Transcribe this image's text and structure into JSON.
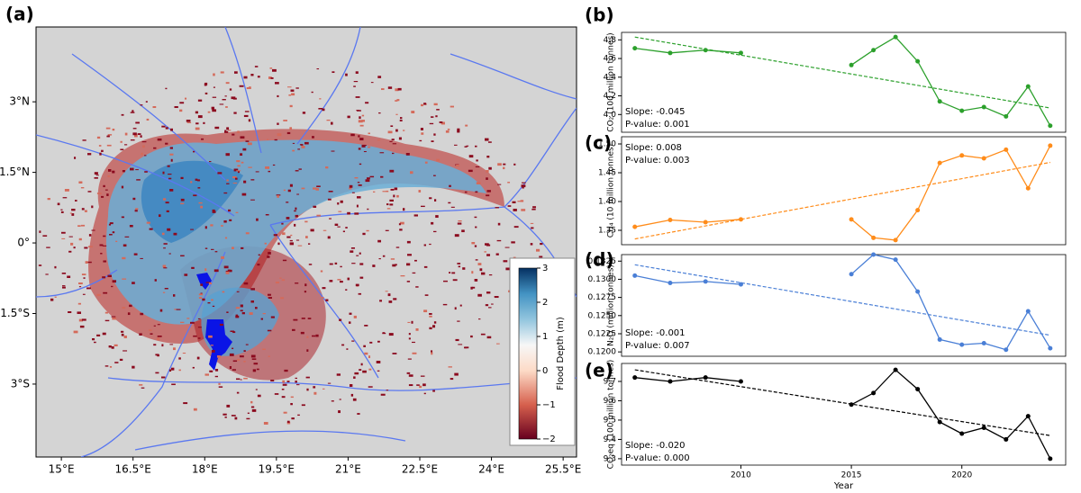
{
  "chart_data": [
    {
      "type": "map",
      "panel_label": "(a)",
      "xlim": [
        14.47,
        25.78
      ],
      "xticks": [
        {
          "value": 15,
          "label": "15°E"
        },
        {
          "value": 16.5,
          "label": "16.5°E"
        },
        {
          "value": 18,
          "label": "18°E"
        },
        {
          "value": 19.5,
          "label": "19.5°E"
        },
        {
          "value": 21,
          "label": "21°E"
        },
        {
          "value": 22.5,
          "label": "22.5°E"
        },
        {
          "value": 24,
          "label": "24°E"
        },
        {
          "value": 25.5,
          "label": "25.5°E"
        }
      ],
      "ylim": [
        -4.55,
        4.59
      ],
      "yticks": [
        {
          "value": 3,
          "label": "3°N"
        },
        {
          "value": 1.5,
          "label": "1.5°N"
        },
        {
          "value": 0,
          "label": "0°"
        },
        {
          "value": -1.5,
          "label": "1.5°S"
        },
        {
          "value": -3,
          "label": "3°S"
        }
      ],
      "colorbar": {
        "label": "Flood Depth (m)",
        "lim": [
          -2,
          3
        ],
        "ticks": [
          3,
          2,
          1,
          0,
          {
            "value": -1,
            "label": "−1"
          },
          {
            "value": -2,
            "label": "−2"
          }
        ]
      }
    },
    {
      "type": "line",
      "panel_label": "(b)",
      "ylabel": "CO₂ (100 million tonnes)",
      "color": "#2ca02c",
      "x": [
        2005.2,
        2006.8,
        2008.4,
        2010,
        null,
        2015,
        2016,
        2017,
        2018,
        2019,
        2020,
        2021,
        2022,
        2023,
        2024
      ],
      "values": [
        4.71,
        4.66,
        4.69,
        4.66,
        null,
        4.53,
        4.69,
        4.83,
        4.57,
        4.14,
        4.04,
        4.08,
        3.98,
        4.3,
        3.88
      ],
      "trend_values": [
        4.83,
        4.07
      ],
      "xlim": [
        2004.6,
        2024.7
      ],
      "ylim": [
        3.81,
        4.88
      ],
      "yticks": [
        {
          "value": 4,
          "label": "4.0"
        },
        4.2,
        4.4,
        4.6,
        4.8
      ],
      "annotations": [
        "Slope: -0.045",
        "P-value: 0.001"
      ]
    },
    {
      "type": "line",
      "panel_label": "(c)",
      "ylabel": "CH₄ (10 million tonnes)",
      "color": "#ff8c1a",
      "x": [
        2005.2,
        2006.8,
        2008.4,
        2010,
        null,
        2015,
        2016,
        2017,
        2018,
        2019,
        2020,
        2021,
        2022,
        2023,
        2024
      ],
      "values": [
        1.356,
        1.368,
        1.364,
        1.369,
        null,
        1.369,
        1.337,
        1.333,
        1.385,
        1.467,
        1.48,
        1.475,
        1.49,
        1.423,
        1.497
      ],
      "trend_values": [
        1.335,
        1.468
      ],
      "xlim": [
        2004.6,
        2024.7
      ],
      "ylim": [
        1.325,
        1.5125
      ],
      "yticks": [
        1.35,
        {
          "value": 1.4,
          "label": "1.40"
        },
        1.45,
        {
          "value": 1.5,
          "label": "1.50"
        }
      ],
      "annotations": [
        "Slope: 0.008",
        "P-value: 0.003"
      ]
    },
    {
      "type": "line",
      "panel_label": "(d)",
      "ylabel": "N₂O (million tonnes)",
      "color": "#4a7fd6",
      "x": [
        2005.2,
        2006.8,
        2008.4,
        2010,
        null,
        2015,
        2016,
        2017,
        2018,
        2019,
        2020,
        2021,
        2022,
        2023,
        2024
      ],
      "values": [
        0.1305,
        0.1295,
        0.1297,
        0.1293,
        null,
        0.1307,
        0.1334,
        0.1327,
        0.1283,
        0.1217,
        0.121,
        0.1212,
        0.1203,
        0.1256,
        0.1205
      ],
      "trend_values": [
        0.132,
        0.1223
      ],
      "xlim": [
        2004.6,
        2024.7
      ],
      "ylim": [
        0.1194,
        0.1334
      ],
      "yticks": [
        {
          "value": 0.12,
          "label": "0.1200"
        },
        0.1225,
        {
          "value": 0.125,
          "label": "0.1250"
        },
        0.1275,
        {
          "value": 0.13,
          "label": "0.1300"
        },
        0.1325
      ],
      "annotations": [
        "Slope: -0.001",
        "P-value: 0.007"
      ]
    },
    {
      "type": "line",
      "panel_label": "(e)",
      "ylabel": "CO₂eq (100 million tonnes)",
      "xlabel": "Year",
      "color": "#000000",
      "x": [
        2005.2,
        2006.8,
        2008.4,
        2010,
        null,
        2015,
        2016,
        2017,
        2018,
        2019,
        2020,
        2021,
        2022,
        2023,
        2024
      ],
      "values": [
        9.72,
        9.7,
        9.72,
        9.7,
        null,
        9.58,
        9.64,
        9.76,
        9.66,
        9.49,
        9.43,
        9.46,
        9.4,
        9.52,
        9.3
      ],
      "trend_values": [
        9.76,
        9.42
      ],
      "xlim": [
        2004.6,
        2024.7
      ],
      "ylim": [
        9.267,
        9.793
      ],
      "xticks": [
        2010,
        2015,
        2020
      ],
      "yticks": [
        9.3,
        9.4,
        9.5,
        9.6,
        9.7
      ],
      "annotations": [
        "Slope: -0.020",
        "P-value: 0.000"
      ]
    }
  ]
}
